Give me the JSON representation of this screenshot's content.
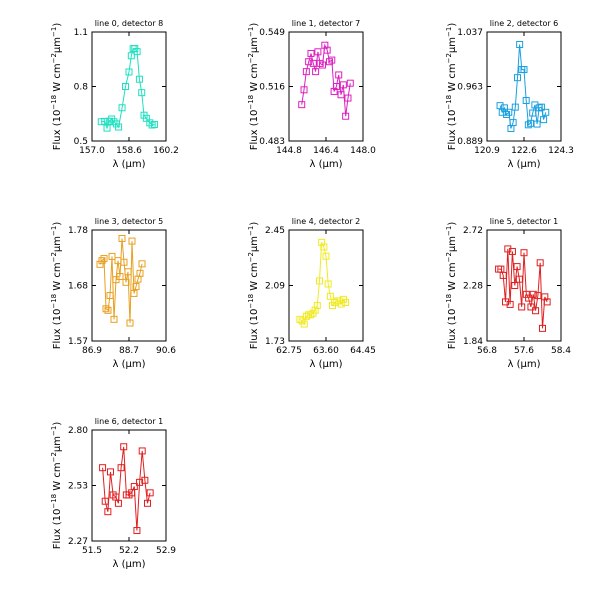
{
  "chart_data": [
    {
      "type": "line",
      "title": "line 0, detector 8",
      "xlabel": "λ (μm)",
      "ylabel": "Flux (10^-18 W cm^-2 μm^-1)",
      "color": "#1ee0c0",
      "xlim": [
        157.0,
        160.2
      ],
      "ylim": [
        0.5,
        1.1
      ],
      "xticks": [
        "157.0",
        "158.6",
        "160.2"
      ],
      "yticks": [
        "0.5",
        "0.8",
        "1.1"
      ],
      "x": [
        157.4,
        157.55,
        157.65,
        157.75,
        157.85,
        157.95,
        158.05,
        158.15,
        158.3,
        158.45,
        158.6,
        158.7,
        158.78,
        158.85,
        158.95,
        159.05,
        159.15,
        159.25,
        159.35,
        159.5,
        159.6,
        159.7
      ],
      "y": [
        0.606,
        0.608,
        0.571,
        0.609,
        0.621,
        0.606,
        0.594,
        0.577,
        0.683,
        0.8,
        0.88,
        0.969,
        1.008,
        1.009,
        0.992,
        0.84,
        0.766,
        0.642,
        0.625,
        0.6,
        0.588,
        0.591
      ]
    },
    {
      "type": "line",
      "title": "line 1, detector 7",
      "xlabel": "λ (μm)",
      "ylabel": "Flux (10^-18 W cm^-2 μm^-1)",
      "color": "#dd20c0",
      "xlim": [
        144.8,
        148.0
      ],
      "ylim": [
        0.483,
        0.549
      ],
      "xticks": [
        "144.8",
        "146.4",
        "148.0"
      ],
      "yticks": [
        "0.483",
        "0.516",
        "0.549"
      ],
      "x": [
        145.35,
        145.45,
        145.55,
        145.65,
        145.75,
        145.85,
        145.95,
        146.05,
        146.15,
        146.25,
        146.35,
        146.45,
        146.55,
        146.65,
        146.75,
        146.85,
        146.95,
        147.05,
        147.15,
        147.25,
        147.35,
        147.45
      ],
      "y": [
        0.505,
        0.514,
        0.525,
        0.531,
        0.536,
        0.53,
        0.525,
        0.537,
        0.53,
        0.529,
        0.541,
        0.538,
        0.531,
        0.532,
        0.513,
        0.516,
        0.523,
        0.511,
        0.517,
        0.498,
        0.509,
        0.518
      ]
    },
    {
      "type": "line",
      "title": "line 2, detector 6",
      "xlabel": "λ (μm)",
      "ylabel": "Flux (10^-18 W cm^-2 μm^-1)",
      "color": "#1aa0e0",
      "xlim": [
        120.9,
        124.3
      ],
      "ylim": [
        0.889,
        1.037
      ],
      "xticks": [
        "120.9",
        "122.6",
        "124.3"
      ],
      "yticks": [
        "0.889",
        "0.963",
        "1.037"
      ],
      "x": [
        121.5,
        121.6,
        121.7,
        121.8,
        121.9,
        122.0,
        122.1,
        122.2,
        122.3,
        122.4,
        122.5,
        122.6,
        122.7,
        122.8,
        122.9,
        123.0,
        123.1,
        123.2,
        123.3,
        123.4,
        123.5,
        123.6
      ],
      "y": [
        0.937,
        0.928,
        0.934,
        0.925,
        0.928,
        0.906,
        0.914,
        0.935,
        0.975,
        1.02,
        0.986,
        0.986,
        0.944,
        0.911,
        0.913,
        0.927,
        0.938,
        0.912,
        0.934,
        0.935,
        0.918,
        0.928
      ]
    },
    {
      "type": "line",
      "title": "line 3, detector 5",
      "xlabel": "λ (μm)",
      "ylabel": "Flux (10^-18 W cm^-2 μm^-1)",
      "color": "#e8a020",
      "xlim": [
        86.9,
        90.6
      ],
      "ylim": [
        1.57,
        1.78
      ],
      "xticks": [
        "86.9",
        "88.7",
        "90.6"
      ],
      "yticks": [
        "1.57",
        "1.68",
        "1.78"
      ],
      "x": [
        87.3,
        87.4,
        87.5,
        87.6,
        87.7,
        87.8,
        87.9,
        88.0,
        88.1,
        88.2,
        88.3,
        88.4,
        88.5,
        88.6,
        88.7,
        88.8,
        88.9,
        89.0,
        89.1,
        89.2,
        89.3,
        89.4
      ],
      "y": [
        1.715,
        1.722,
        1.726,
        1.631,
        1.628,
        1.656,
        1.73,
        1.611,
        1.686,
        1.722,
        1.692,
        1.764,
        1.719,
        1.681,
        1.701,
        1.604,
        1.759,
        1.66,
        1.673,
        1.687,
        1.698,
        1.716
      ]
    },
    {
      "type": "line",
      "title": "line 4, detector 2",
      "xlabel": "λ (μm)",
      "ylabel": "Flux (10^-18 W cm^-2 μm^-1)",
      "color": "#f0ea20",
      "xlim": [
        62.75,
        64.45
      ],
      "ylim": [
        1.73,
        2.45
      ],
      "xticks": [
        "62.75",
        "63.60",
        "64.45"
      ],
      "yticks": [
        "1.73",
        "2.09",
        "2.45"
      ],
      "x": [
        63.0,
        63.05,
        63.1,
        63.15,
        63.2,
        63.25,
        63.3,
        63.35,
        63.4,
        63.45,
        63.5,
        63.55,
        63.6,
        63.65,
        63.7,
        63.75,
        63.8,
        63.85,
        63.9,
        63.95,
        64.0,
        64.05
      ],
      "y": [
        1.87,
        1.86,
        1.84,
        1.89,
        1.9,
        1.9,
        1.91,
        1.93,
        1.96,
        2.12,
        2.37,
        2.34,
        2.28,
        2.1,
        2.02,
        1.96,
        1.98,
        1.99,
        1.99,
        1.97,
        2.0,
        1.98
      ]
    },
    {
      "type": "line",
      "title": "line 5, detector 1",
      "xlabel": "λ (μm)",
      "ylabel": "Flux (10^-18 W cm^-2 μm^-1)",
      "color": "#e02020",
      "xlim": [
        56.8,
        58.4
      ],
      "ylim": [
        1.84,
        2.72
      ],
      "xticks": [
        "56.8",
        "57.6",
        "58.4"
      ],
      "yticks": [
        "1.84",
        "2.28",
        "2.72"
      ],
      "x": [
        57.05,
        57.1,
        57.15,
        57.2,
        57.25,
        57.3,
        57.35,
        57.4,
        57.45,
        57.5,
        57.55,
        57.6,
        57.65,
        57.7,
        57.75,
        57.8,
        57.85,
        57.9,
        57.95,
        58.0,
        58.05,
        58.1
      ],
      "y": [
        2.41,
        2.41,
        2.36,
        2.15,
        2.57,
        2.13,
        2.55,
        2.28,
        2.43,
        2.33,
        2.11,
        2.54,
        2.21,
        2.18,
        2.11,
        2.21,
        2.08,
        2.2,
        2.46,
        1.94,
        2.19,
        2.15
      ]
    },
    {
      "type": "line",
      "title": "line 6, detector 1",
      "xlabel": "λ (μm)",
      "ylabel": "Flux (10^-18 W cm^-2 μm^-1)",
      "color": "#e02020",
      "xlim": [
        51.5,
        52.9
      ],
      "ylim": [
        2.27,
        2.8
      ],
      "xticks": [
        "51.5",
        "52.2",
        "52.9"
      ],
      "yticks": [
        "2.27",
        "2.53",
        "2.80"
      ],
      "x": [
        51.7,
        51.75,
        51.8,
        51.85,
        51.9,
        51.95,
        52.0,
        52.05,
        52.1,
        52.15,
        52.2,
        52.25,
        52.3,
        52.35,
        52.4,
        52.45,
        52.5,
        52.55,
        52.6
      ],
      "y": [
        2.62,
        2.46,
        2.41,
        2.6,
        2.49,
        2.48,
        2.45,
        2.62,
        2.72,
        2.49,
        2.49,
        2.5,
        2.53,
        2.32,
        2.55,
        2.7,
        2.56,
        2.45,
        2.5
      ]
    }
  ]
}
